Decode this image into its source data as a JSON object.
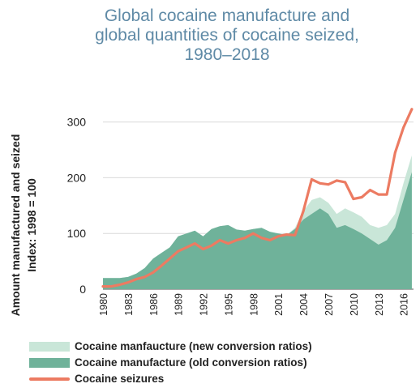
{
  "title_lines": [
    "Global cocaine manufacture and",
    "global quantities of cocaine seized,",
    "1980–2018"
  ],
  "colors": {
    "title": "#5f8aa6",
    "new_ratios": "#c9e6d8",
    "old_ratios": "#6fb29a",
    "seizures": "#ec7b62"
  },
  "chart_data": {
    "type": "area",
    "title": "Global cocaine manufacture and global quantities of cocaine seized, 1980–2018",
    "ylabel_lines": [
      "Amount manufactured and seized",
      "Index: 1998 = 100"
    ],
    "xlabel": "",
    "ylim": [
      0,
      330
    ],
    "xlim": [
      1980,
      2017.2
    ],
    "yticks": [
      0,
      100,
      200,
      300
    ],
    "xticks": [
      1980,
      1983,
      1986,
      1989,
      1992,
      1995,
      1998,
      2001,
      2004,
      2007,
      2010,
      2013,
      2016
    ],
    "grid": "horizontal",
    "legend_position": "bottom",
    "x": [
      1980,
      1981,
      1982,
      1983,
      1984,
      1985,
      1986,
      1987,
      1988,
      1989,
      1990,
      1991,
      1992,
      1993,
      1994,
      1995,
      1996,
      1997,
      1998,
      1999,
      2000,
      2001,
      2002,
      2003,
      2004,
      2005,
      2006,
      2007,
      2008,
      2009,
      2010,
      2011,
      2012,
      2013,
      2014,
      2015,
      2016,
      2017
    ],
    "series": [
      {
        "name": "Cocaine manfaucture (new conversion ratios)",
        "kind": "area",
        "values": [
          20,
          20,
          20,
          22,
          28,
          38,
          55,
          65,
          75,
          95,
          100,
          105,
          95,
          108,
          113,
          115,
          107,
          105,
          108,
          110,
          103,
          100,
          97,
          110,
          140,
          160,
          165,
          155,
          135,
          145,
          138,
          130,
          115,
          110,
          115,
          135,
          190,
          240
        ]
      },
      {
        "name": "Cocaine manufacture (old conversion ratios)",
        "kind": "area",
        "values": [
          20,
          20,
          20,
          22,
          28,
          38,
          55,
          65,
          75,
          95,
          100,
          105,
          95,
          108,
          113,
          115,
          107,
          105,
          108,
          110,
          103,
          100,
          97,
          108,
          125,
          135,
          145,
          135,
          110,
          115,
          108,
          100,
          90,
          80,
          88,
          110,
          160,
          210
        ]
      },
      {
        "name": "Cocaine seizures",
        "kind": "line",
        "values": [
          5,
          5,
          8,
          12,
          18,
          22,
          30,
          42,
          55,
          68,
          75,
          82,
          72,
          78,
          88,
          82,
          88,
          92,
          100,
          92,
          88,
          95,
          98,
          97,
          140,
          197,
          190,
          188,
          195,
          192,
          162,
          165,
          178,
          170,
          170,
          245,
          290,
          323
        ]
      }
    ]
  }
}
